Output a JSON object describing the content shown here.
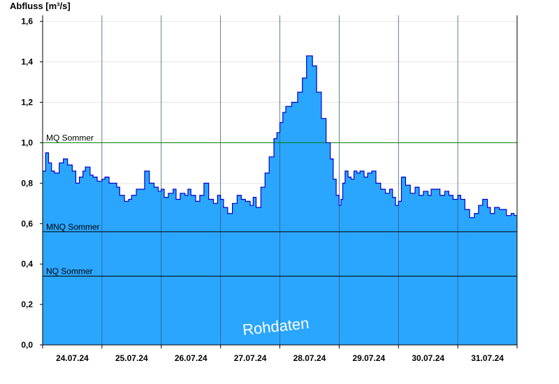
{
  "chart_data": {
    "type": "area",
    "ylabel": "Abfluss [m³/s]",
    "ylim": [
      0,
      1.63
    ],
    "yticks": [
      "0,0",
      "0,2",
      "0,4",
      "0,6",
      "0,8",
      "1,0",
      "1,2",
      "1,4",
      "1,6"
    ],
    "ytick_values": [
      0,
      0.2,
      0.4,
      0.6,
      0.8,
      1.0,
      1.2,
      1.4,
      1.6
    ],
    "xlim": [
      0,
      8
    ],
    "x_tick_labels": [
      "24.07.24",
      "25.07.24",
      "26.07.24",
      "27.07.24",
      "28.07.24",
      "29.07.24",
      "30.07.24",
      "31.07.24"
    ],
    "day_boundaries": [
      1,
      2,
      3,
      4,
      5,
      6,
      7
    ],
    "fill_color": "#2aa6ff",
    "line_color": "#0000cc",
    "reference_lines": [
      {
        "label": "MQ Sommer",
        "value": 1.0,
        "color": "#008000"
      },
      {
        "label": "MNQ Sommer",
        "value": 0.56,
        "color": "#000000"
      },
      {
        "label": "NQ Sommer",
        "value": 0.34,
        "color": "#000000"
      }
    ],
    "watermark": "Rohdaten",
    "series": [
      {
        "x": [
          0.0,
          0.05,
          0.1,
          0.15,
          0.2,
          0.28,
          0.35,
          0.42,
          0.5,
          0.56,
          0.62,
          0.68,
          0.72,
          0.8,
          0.85,
          0.92,
          1.0,
          1.05,
          1.12,
          1.2,
          1.25,
          1.3,
          1.38,
          1.45,
          1.5,
          1.58,
          1.65,
          1.72,
          1.8,
          1.88,
          1.95,
          2.0,
          2.05,
          2.12,
          2.2,
          2.25,
          2.32,
          2.4,
          2.45,
          2.5,
          2.58,
          2.65,
          2.72,
          2.8,
          2.88,
          2.95,
          3.0,
          3.05,
          3.12,
          3.2,
          3.28,
          3.35,
          3.42,
          3.5,
          3.55,
          3.6,
          3.68,
          3.75,
          3.82,
          3.9,
          3.95,
          4.0,
          4.05,
          4.1,
          4.2,
          4.3,
          4.38,
          4.45,
          4.5,
          4.55,
          4.62,
          4.7,
          4.78,
          4.85,
          4.9,
          4.95,
          5.0,
          5.03,
          5.06,
          5.1,
          5.15,
          5.2,
          5.25,
          5.3,
          5.35,
          5.42,
          5.48,
          5.55,
          5.62,
          5.7,
          5.78,
          5.85,
          5.9,
          5.95,
          6.0,
          6.05,
          6.12,
          6.2,
          6.28,
          6.35,
          6.42,
          6.5,
          6.55,
          6.62,
          6.7,
          6.78,
          6.85,
          6.92,
          7.0,
          7.05,
          7.12,
          7.2,
          7.28,
          7.35,
          7.42,
          7.5,
          7.55,
          7.62,
          7.7,
          7.75,
          7.82,
          7.9,
          7.95,
          8.0
        ],
        "y": [
          0.86,
          0.95,
          0.9,
          0.86,
          0.85,
          0.9,
          0.92,
          0.89,
          0.86,
          0.8,
          0.83,
          0.86,
          0.88,
          0.84,
          0.83,
          0.81,
          0.82,
          0.83,
          0.8,
          0.8,
          0.78,
          0.74,
          0.71,
          0.72,
          0.74,
          0.77,
          0.77,
          0.86,
          0.8,
          0.78,
          0.76,
          0.77,
          0.73,
          0.75,
          0.77,
          0.72,
          0.75,
          0.74,
          0.77,
          0.74,
          0.71,
          0.74,
          0.8,
          0.72,
          0.7,
          0.74,
          0.72,
          0.68,
          0.65,
          0.7,
          0.74,
          0.72,
          0.71,
          0.69,
          0.73,
          0.68,
          0.78,
          0.85,
          0.93,
          1.02,
          1.05,
          1.1,
          1.15,
          1.18,
          1.2,
          1.25,
          1.32,
          1.43,
          1.43,
          1.38,
          1.25,
          1.12,
          1.0,
          0.92,
          0.82,
          0.74,
          0.69,
          0.72,
          0.8,
          0.86,
          0.83,
          0.82,
          0.86,
          0.85,
          0.86,
          0.83,
          0.85,
          0.86,
          0.8,
          0.77,
          0.75,
          0.77,
          0.73,
          0.69,
          0.71,
          0.83,
          0.79,
          0.75,
          0.78,
          0.74,
          0.76,
          0.74,
          0.77,
          0.77,
          0.74,
          0.76,
          0.74,
          0.72,
          0.74,
          0.72,
          0.67,
          0.63,
          0.65,
          0.69,
          0.72,
          0.68,
          0.65,
          0.68,
          0.67,
          0.67,
          0.64,
          0.65,
          0.64,
          0.64
        ]
      }
    ]
  }
}
